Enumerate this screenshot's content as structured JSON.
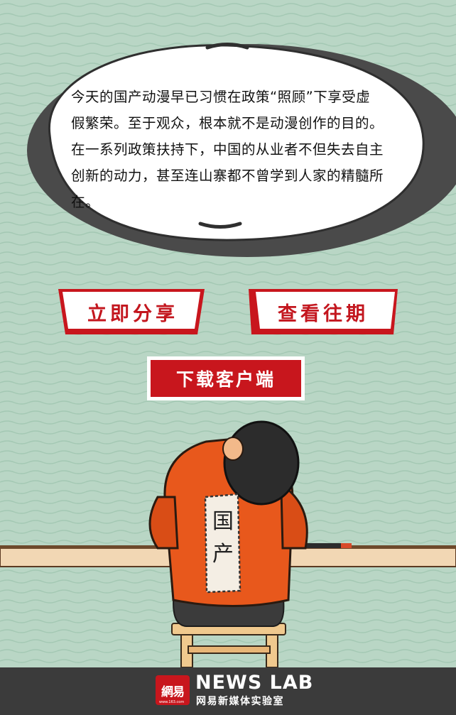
{
  "bubble": {
    "text": "今天的国产动漫早已习惯在政策“照顾”下享受虚假繁荣。至于观众，根本就不是动漫创作的目的。在一系列政策扶持下，中国的从业者不但失去自主创新的动力，甚至连山寨都不曾学到人家的精髓所在。"
  },
  "buttons": {
    "share": "立即分享",
    "history": "查看往期",
    "download": "下载客户端"
  },
  "illustration": {
    "jacket_text": "国产"
  },
  "footer": {
    "logo_mark": "網易",
    "logo_small": "www.163.com",
    "brand": "NEWS LAB",
    "subtitle": "网易新媒体实验室"
  },
  "colors": {
    "background": "#b9d6c5",
    "wave": "#9cc2ae",
    "accent_red": "#c8161d",
    "jacket_orange": "#e8581c",
    "footer": "#3b3b3b"
  }
}
